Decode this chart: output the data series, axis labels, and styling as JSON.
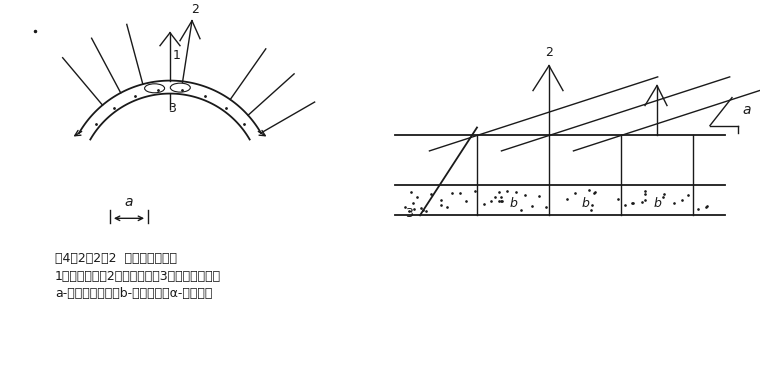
{
  "bg_color": "#ffffff",
  "line_color": "#1a1a1a",
  "title_line1": "图4．2．2－2  悬吊式超前锚杆",
  "title_line2": "1－超前锚杆，2－径向锚杆，3－横向连接短筋",
  "title_line3": "a-超前锚杆间距，b-爆破进尺，α-锚杆倾角",
  "text_fontsize": 9,
  "label_fontsize": 9
}
